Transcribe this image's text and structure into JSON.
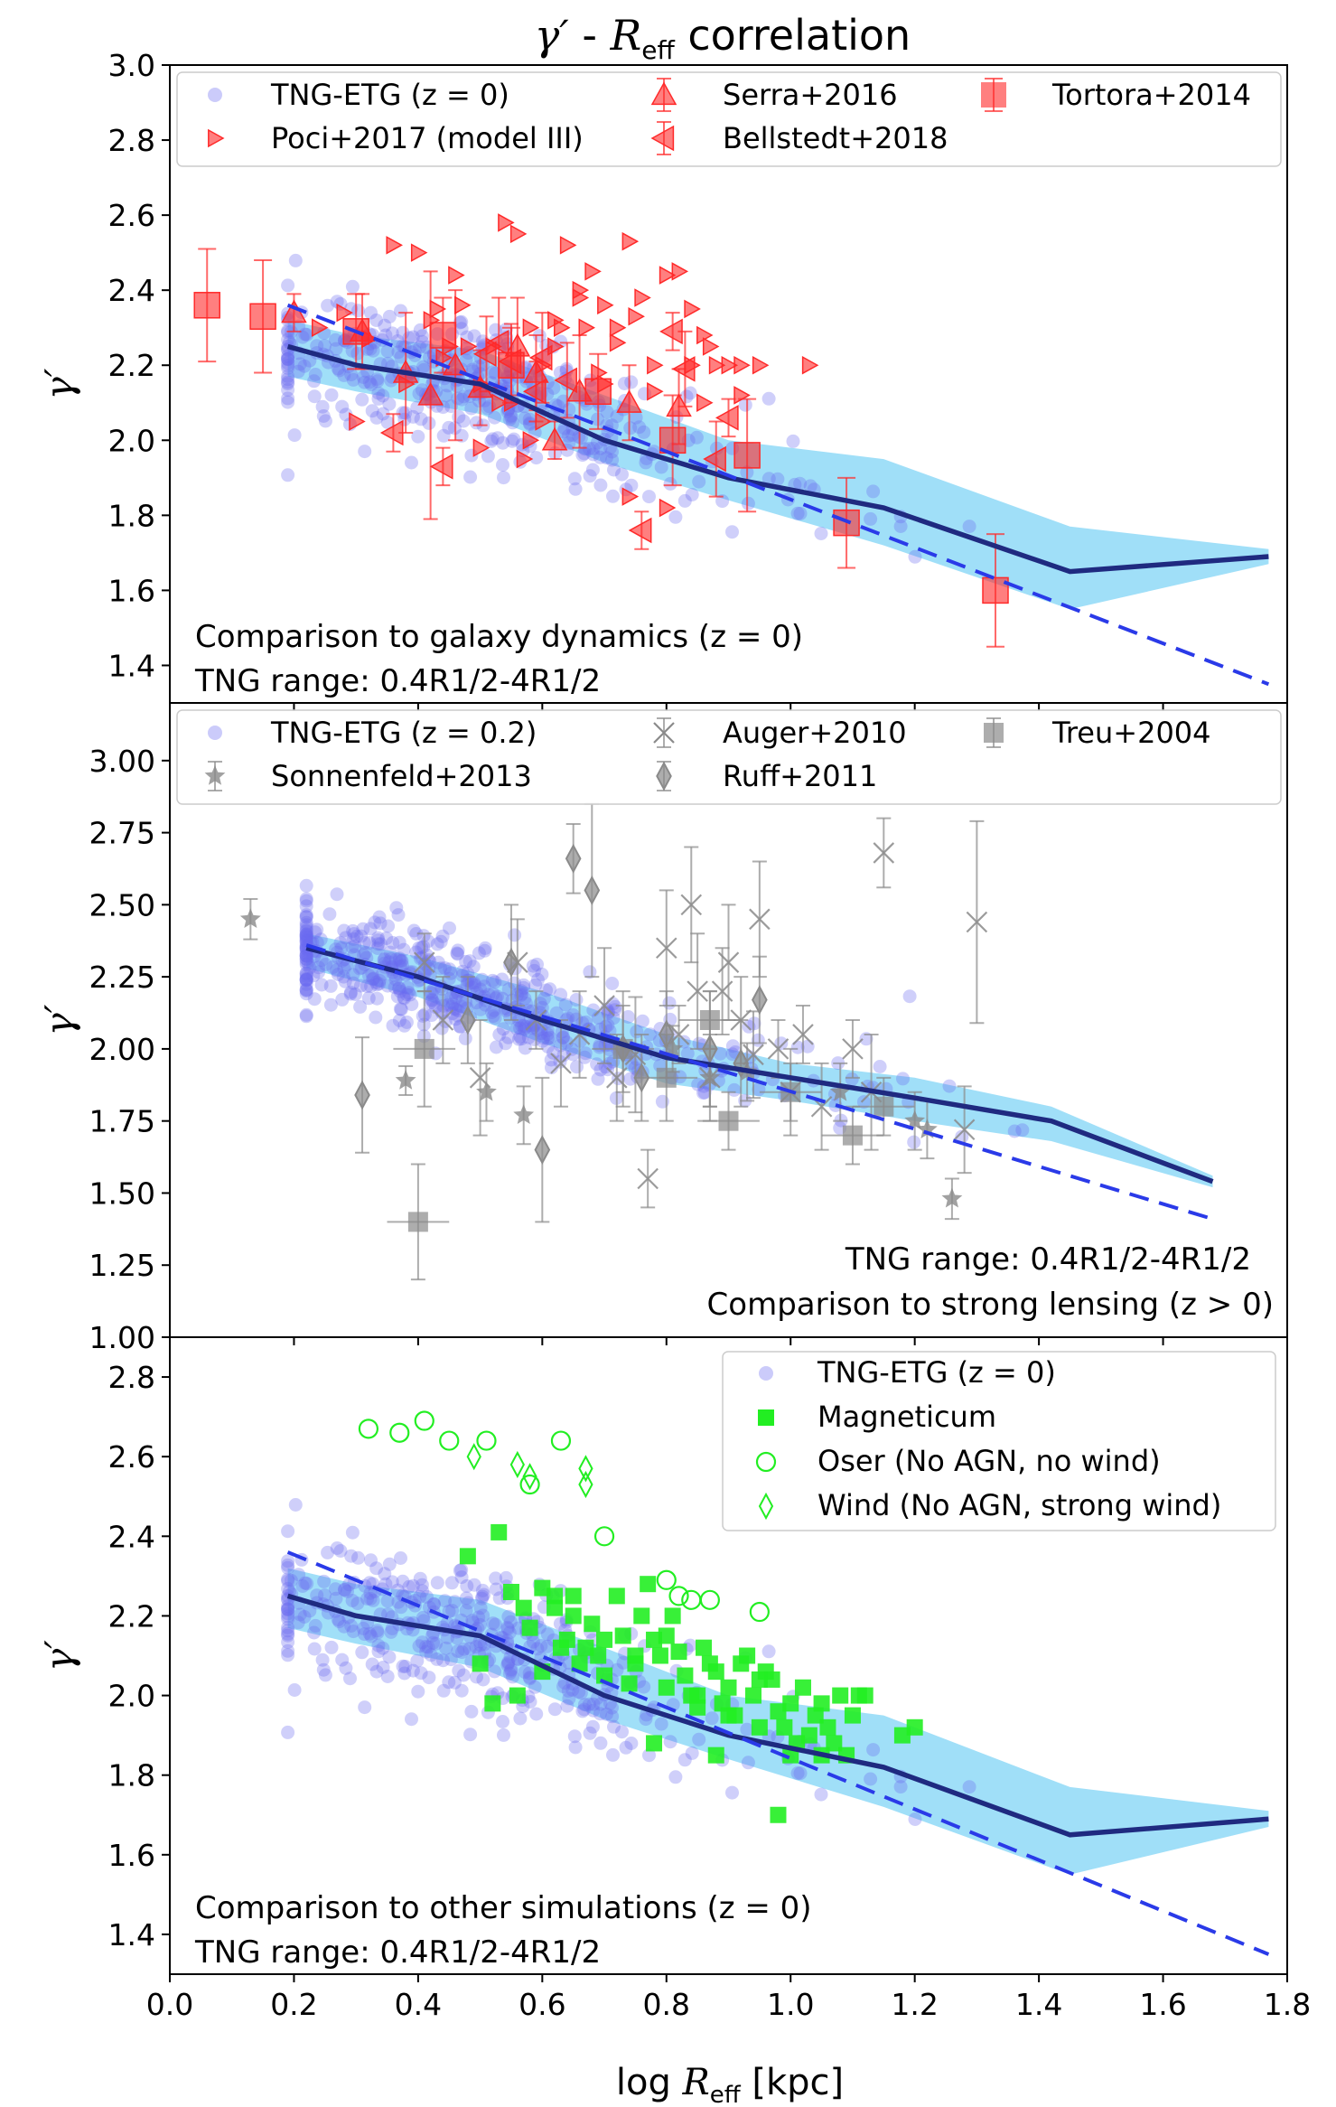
{
  "figure": {
    "title_symbol": "γ′",
    "title_sep": " - ",
    "title_R": "R",
    "title_R_sub": "eff",
    "title_rest": " correlation",
    "xlabel_main": "log ",
    "xlabel_R": "R",
    "xlabel_R_sub": "eff",
    "xlabel_unit": " [kpc]",
    "ylabel": "γ′"
  },
  "colors": {
    "tng_points": "#6b6bf0",
    "tng_band": "#80d4f5",
    "median_line": "#1f2a80",
    "fit_line": "#2a3ae8",
    "dynamics_obs": "#ff2a2a",
    "lensing_obs": "#8a8a8a",
    "magneticum": "#22ee22",
    "oser": "#22ee22"
  },
  "chart_data": [
    {
      "type": "scatter",
      "panel": "top",
      "xlim": [
        0.0,
        1.8
      ],
      "ylim": [
        1.3,
        3.0
      ],
      "xticks": [
        "0.0",
        "0.2",
        "0.4",
        "0.6",
        "0.8",
        "1.0",
        "1.2",
        "1.4",
        "1.6",
        "1.8"
      ],
      "yticks": [
        "1.4",
        "1.6",
        "1.8",
        "2.0",
        "2.2",
        "2.4",
        "2.6",
        "2.8",
        "3.0"
      ],
      "ytick_values": [
        1.4,
        1.6,
        1.8,
        2.0,
        2.2,
        2.4,
        2.6,
        2.8,
        3.0
      ],
      "annotation_line1": "Comparison to galaxy dynamics (z = 0)",
      "annotation_line2": "TNG range: 0.4R1/2-4R1/2",
      "legend": [
        "TNG-ETG (z = 0)",
        "Poci+2017 (model III)",
        "Serra+2016",
        "Bellstedt+2018",
        "Tortora+2014"
      ],
      "median_line": {
        "x": [
          0.19,
          0.3,
          0.5,
          0.7,
          0.9,
          1.15,
          1.45,
          1.77
        ],
        "y": [
          2.25,
          2.2,
          2.15,
          2.0,
          1.9,
          1.82,
          1.65,
          1.69
        ]
      },
      "band": {
        "x": [
          0.19,
          0.3,
          0.5,
          0.7,
          0.9,
          1.15,
          1.45,
          1.77
        ],
        "upper": [
          2.32,
          2.28,
          2.24,
          2.12,
          2.0,
          1.95,
          1.77,
          1.71
        ],
        "lower": [
          2.17,
          2.13,
          2.07,
          1.94,
          1.84,
          1.72,
          1.55,
          1.67
        ]
      },
      "fit_line": {
        "x": [
          0.19,
          1.77
        ],
        "y": [
          2.36,
          1.35
        ]
      },
      "tortora": {
        "x": [
          0.06,
          0.15,
          0.3,
          0.44,
          0.55,
          0.69,
          0.81,
          0.93,
          1.09,
          1.33
        ],
        "y": [
          2.36,
          2.33,
          2.29,
          2.28,
          2.2,
          2.13,
          2.0,
          1.96,
          1.78,
          1.6
        ],
        "err": [
          0.15,
          0.15,
          0.1,
          0.1,
          0.1,
          0.1,
          0.12,
          0.15,
          0.12,
          0.15
        ]
      },
      "serra": {
        "x": [
          0.2,
          0.31,
          0.38,
          0.42,
          0.46,
          0.5,
          0.56,
          0.59,
          0.62,
          0.66,
          0.74,
          0.82
        ],
        "y": [
          2.34,
          2.29,
          2.18,
          2.12,
          2.2,
          2.14,
          2.25,
          2.18,
          2.0,
          2.13,
          2.1,
          2.09
        ],
        "err": [
          0.05,
          0.1,
          0.16,
          0.33,
          0.2,
          0.1,
          0.13,
          0.1,
          0.05,
          0.15,
          0.1,
          0.1
        ]
      },
      "bellstedt": {
        "x": [
          0.36,
          0.44,
          0.51,
          0.53,
          0.55,
          0.59,
          0.6,
          0.64,
          0.76,
          0.81,
          0.83,
          0.88,
          0.9
        ],
        "y": [
          2.02,
          1.93,
          2.23,
          2.26,
          2.21,
          2.13,
          2.22,
          2.16,
          1.76,
          2.29,
          2.19,
          1.95,
          2.06
        ],
        "err": [
          0.05,
          0.05,
          0.1,
          0.12,
          0.1,
          0.08,
          0.12,
          0.1,
          0.05,
          0.05,
          0.1,
          0.1,
          0.05
        ]
      },
      "poci": {
        "x": [
          0.24,
          0.28,
          0.32,
          0.36,
          0.4,
          0.42,
          0.44,
          0.46,
          0.48,
          0.5,
          0.52,
          0.54,
          0.56,
          0.58,
          0.6,
          0.62,
          0.64,
          0.66,
          0.68,
          0.7,
          0.72,
          0.74,
          0.76,
          0.78,
          0.8,
          0.82,
          0.84,
          0.86,
          0.88,
          0.9,
          0.92,
          0.55,
          0.6,
          0.67,
          0.72,
          0.78,
          0.84,
          0.95,
          1.03,
          0.3,
          0.38,
          0.45,
          0.5,
          0.53,
          0.57,
          0.63,
          0.7,
          0.74,
          0.8,
          0.86,
          0.58,
          0.62,
          0.66,
          0.43,
          0.47,
          0.69,
          0.75,
          0.87,
          0.92
        ],
        "y": [
          2.3,
          2.34,
          2.27,
          2.52,
          2.5,
          2.32,
          2.22,
          2.44,
          2.25,
          2.15,
          2.25,
          2.58,
          2.55,
          2.3,
          2.2,
          2.25,
          2.52,
          2.4,
          2.45,
          2.36,
          2.3,
          2.53,
          2.38,
          2.2,
          2.44,
          2.45,
          2.35,
          2.28,
          2.2,
          2.2,
          2.12,
          2.1,
          2.05,
          2.3,
          2.26,
          2.13,
          2.2,
          2.2,
          2.2,
          2.05,
          2.15,
          2.25,
          1.98,
          2.1,
          1.95,
          2.3,
          2.15,
          1.85,
          1.82,
          2.1,
          2.0,
          2.32,
          2.38,
          2.35,
          2.36,
          2.18,
          2.33,
          2.25,
          2.2
        ],
        "err": []
      },
      "tng_scatter_seed": 11,
      "tng_scatter_count": 420
    },
    {
      "type": "scatter",
      "panel": "middle",
      "xlim": [
        0.0,
        1.8
      ],
      "ylim": [
        1.0,
        3.2
      ],
      "xticks": [
        "0.0",
        "0.2",
        "0.4",
        "0.6",
        "0.8",
        "1.0",
        "1.2",
        "1.4",
        "1.6",
        "1.8"
      ],
      "yticks": [
        "1.00",
        "1.25",
        "1.50",
        "1.75",
        "2.00",
        "2.25",
        "2.50",
        "2.75",
        "3.00"
      ],
      "ytick_values": [
        1.0,
        1.25,
        1.5,
        1.75,
        2.0,
        2.25,
        2.5,
        2.75,
        3.0
      ],
      "annotation_line1": "TNG range: 0.4R1/2-4R1/2",
      "annotation_line2": "Comparison to strong lensing (z > 0)",
      "legend": [
        "TNG-ETG (z = 0.2)",
        "Sonnenfeld+2013",
        "Auger+2010",
        "Ruff+2011",
        "Treu+2004"
      ],
      "median_line": {
        "x": [
          0.22,
          0.4,
          0.6,
          0.8,
          1.0,
          1.2,
          1.42,
          1.68
        ],
        "y": [
          2.35,
          2.25,
          2.1,
          1.97,
          1.9,
          1.83,
          1.75,
          1.54
        ]
      },
      "band": {
        "x": [
          0.22,
          0.4,
          0.6,
          0.8,
          1.0,
          1.2,
          1.42,
          1.68
        ],
        "upper": [
          2.4,
          2.32,
          2.2,
          2.05,
          1.95,
          1.9,
          1.8,
          1.56
        ],
        "lower": [
          2.28,
          2.18,
          2.02,
          1.88,
          1.82,
          1.75,
          1.68,
          1.52
        ]
      },
      "fit_line": {
        "x": [
          0.22,
          1.68
        ],
        "y": [
          2.36,
          1.41
        ]
      },
      "sonnenfeld": {
        "x": [
          0.13,
          0.38,
          0.51,
          0.57,
          0.81,
          0.87,
          0.93,
          1.08,
          1.2,
          1.22,
          1.26
        ],
        "y": [
          2.45,
          1.89,
          1.85,
          1.77,
          2.0,
          1.9,
          1.92,
          1.85,
          1.75,
          1.72,
          1.48
        ],
        "err": [
          0.07,
          0.05,
          0.1,
          0.1,
          0.08,
          0.1,
          0.1,
          0.1,
          0.1,
          0.1,
          0.07
        ]
      },
      "auger": {
        "x": [
          0.41,
          0.44,
          0.5,
          0.56,
          0.59,
          0.66,
          0.7,
          0.72,
          0.75,
          0.8,
          0.82,
          0.84,
          0.87,
          0.89,
          0.9,
          0.92,
          0.95,
          0.98,
          1.0,
          1.02,
          1.05,
          1.1,
          1.13,
          1.15,
          1.28,
          1.3,
          0.63,
          0.77,
          0.85,
          0.94
        ],
        "y": [
          2.3,
          2.1,
          1.9,
          2.3,
          2.1,
          2.05,
          2.15,
          1.9,
          1.98,
          2.35,
          2.05,
          2.5,
          1.9,
          2.2,
          2.3,
          2.1,
          2.45,
          2.0,
          1.85,
          2.05,
          1.8,
          2.0,
          1.85,
          2.68,
          1.72,
          2.44,
          1.95,
          1.55,
          2.2,
          1.98
        ],
        "err": [
          0.1,
          0.15,
          0.2,
          0.15,
          0.1,
          0.15,
          0.2,
          0.15,
          0.2,
          0.2,
          0.1,
          0.2,
          0.15,
          0.15,
          0.2,
          0.15,
          0.2,
          0.1,
          0.15,
          0.1,
          0.15,
          0.1,
          0.2,
          0.12,
          0.15,
          0.35,
          0.15,
          0.1,
          0.2,
          0.15
        ]
      },
      "ruff": {
        "x": [
          0.31,
          0.48,
          0.55,
          0.65,
          0.68,
          0.73,
          0.76,
          0.8,
          0.87,
          0.92,
          0.95,
          0.6
        ],
        "y": [
          1.84,
          2.1,
          2.3,
          2.66,
          2.55,
          2.0,
          1.9,
          2.05,
          2.0,
          1.95,
          2.17,
          1.65
        ],
        "err": [
          0.2,
          0.15,
          0.2,
          0.12,
          0.3,
          0.2,
          0.15,
          0.15,
          0.2,
          0.15,
          0.15,
          0.25
        ]
      },
      "treu": {
        "x": [
          0.41,
          0.4,
          0.73,
          0.8,
          1.0,
          1.1,
          1.15,
          0.9,
          0.87
        ],
        "y": [
          2.0,
          1.4,
          2.0,
          1.9,
          1.85,
          1.7,
          1.8,
          1.75,
          2.1
        ],
        "err": [
          0.2,
          0.2,
          0.15,
          0.15,
          0.1,
          0.1,
          0.1,
          0.1,
          0.1
        ]
      },
      "tng_scatter_seed": 23,
      "tng_scatter_count": 520
    },
    {
      "type": "scatter",
      "panel": "bottom",
      "xlim": [
        0.0,
        1.8
      ],
      "ylim": [
        1.3,
        2.9
      ],
      "xticks": [
        "0.0",
        "0.2",
        "0.4",
        "0.6",
        "0.8",
        "1.0",
        "1.2",
        "1.4",
        "1.6",
        "1.8"
      ],
      "yticks": [
        "1.4",
        "1.6",
        "1.8",
        "2.0",
        "2.2",
        "2.4",
        "2.6",
        "2.8"
      ],
      "ytick_values": [
        1.4,
        1.6,
        1.8,
        2.0,
        2.2,
        2.4,
        2.6,
        2.8
      ],
      "annotation_line1": "Comparison to other simulations (z = 0)",
      "annotation_line2": "TNG range: 0.4R1/2-4R1/2",
      "legend": [
        "TNG-ETG (z = 0)",
        "Magneticum",
        "Oser (No AGN, no wind)",
        "Wind (No AGN, strong wind)"
      ],
      "median_line": {
        "x": [
          0.19,
          0.3,
          0.5,
          0.7,
          0.9,
          1.15,
          1.45,
          1.77
        ],
        "y": [
          2.25,
          2.2,
          2.15,
          2.0,
          1.9,
          1.82,
          1.65,
          1.69
        ]
      },
      "band": {
        "x": [
          0.19,
          0.3,
          0.5,
          0.7,
          0.9,
          1.15,
          1.45,
          1.77
        ],
        "upper": [
          2.32,
          2.28,
          2.24,
          2.12,
          2.0,
          1.95,
          1.77,
          1.71
        ],
        "lower": [
          2.17,
          2.13,
          2.07,
          1.94,
          1.84,
          1.72,
          1.55,
          1.67
        ]
      },
      "fit_line": {
        "x": [
          0.19,
          1.77
        ],
        "y": [
          2.36,
          1.35
        ]
      },
      "magneticum": {
        "x": [
          0.5,
          0.53,
          0.55,
          0.57,
          0.58,
          0.6,
          0.62,
          0.63,
          0.64,
          0.65,
          0.66,
          0.67,
          0.68,
          0.69,
          0.7,
          0.72,
          0.73,
          0.74,
          0.75,
          0.76,
          0.77,
          0.78,
          0.79,
          0.8,
          0.81,
          0.82,
          0.83,
          0.84,
          0.85,
          0.86,
          0.87,
          0.88,
          0.89,
          0.9,
          0.91,
          0.92,
          0.93,
          0.94,
          0.95,
          0.96,
          0.97,
          0.98,
          0.99,
          1.0,
          1.01,
          1.02,
          1.03,
          1.04,
          1.05,
          1.06,
          1.07,
          1.08,
          1.09,
          1.1,
          1.11,
          1.12,
          1.18,
          1.2,
          0.48,
          0.56,
          0.6,
          0.65,
          0.7,
          0.75,
          0.8,
          0.85,
          0.9,
          0.95,
          1.0,
          1.05,
          0.52,
          0.62,
          0.78,
          0.88,
          0.98
        ],
        "y": [
          2.08,
          2.41,
          2.26,
          2.22,
          2.17,
          2.27,
          2.25,
          2.12,
          2.14,
          2.2,
          2.08,
          2.12,
          2.18,
          2.1,
          2.05,
          2.25,
          2.15,
          2.03,
          2.08,
          2.2,
          2.28,
          2.14,
          2.1,
          2.02,
          2.2,
          2.11,
          2.05,
          2.0,
          1.97,
          2.12,
          2.08,
          2.06,
          1.98,
          2.02,
          1.95,
          2.08,
          2.1,
          2.0,
          1.92,
          2.06,
          2.04,
          1.96,
          1.92,
          1.98,
          1.88,
          2.02,
          1.9,
          1.95,
          1.98,
          1.92,
          1.88,
          2.0,
          1.85,
          1.95,
          2.0,
          2.0,
          1.9,
          1.92,
          2.35,
          2.0,
          2.06,
          2.25,
          2.14,
          2.1,
          2.15,
          2.0,
          1.95,
          2.04,
          1.85,
          1.85,
          1.98,
          2.22,
          1.88,
          1.85,
          1.7
        ],
        "err": []
      },
      "oser": {
        "x": [
          0.32,
          0.37,
          0.41,
          0.45,
          0.51,
          0.58,
          0.63,
          0.7,
          0.8,
          0.82,
          0.84,
          0.87,
          0.95
        ],
        "y": [
          2.67,
          2.66,
          2.69,
          2.64,
          2.64,
          2.53,
          2.64,
          2.4,
          2.29,
          2.25,
          2.24,
          2.24,
          2.21
        ],
        "err": []
      },
      "wind": {
        "x": [
          0.49,
          0.56,
          0.58,
          0.67,
          0.67
        ],
        "y": [
          2.6,
          2.58,
          2.55,
          2.57,
          2.53
        ],
        "err": []
      },
      "tng_scatter_seed": 11,
      "tng_scatter_count": 420
    }
  ]
}
